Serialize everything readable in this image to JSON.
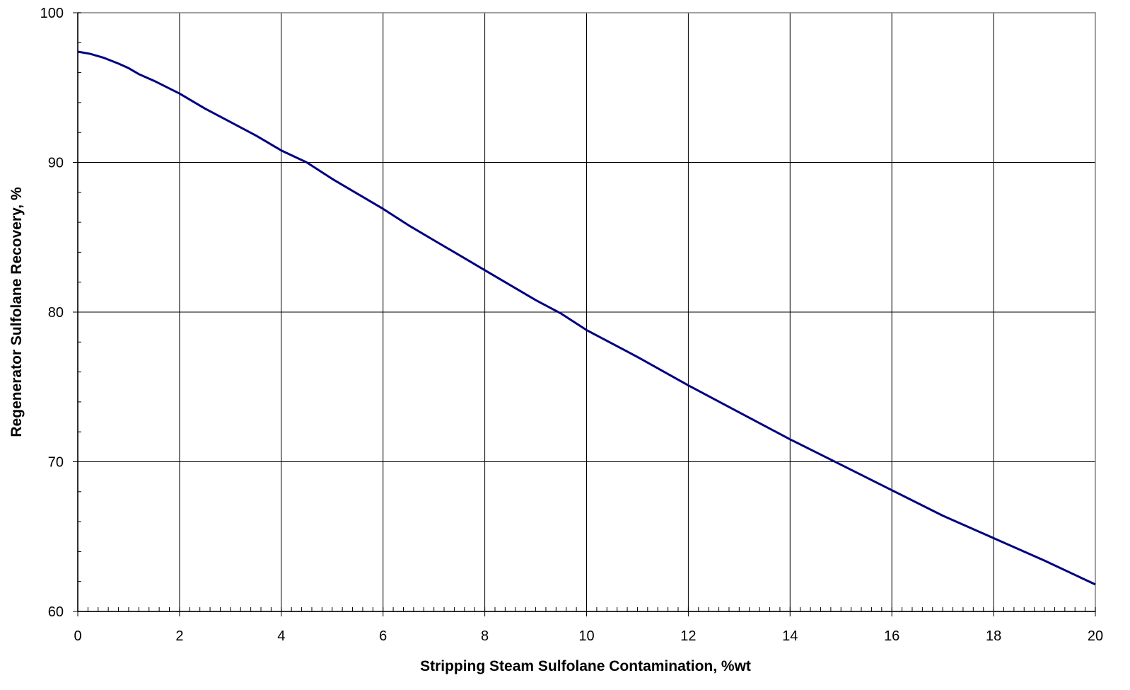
{
  "chart_data": {
    "type": "line",
    "title": "",
    "xlabel": "Stripping Steam Sulfolane Contamination, %wt",
    "ylabel": "Regenerator Sulfolane Recovery, %",
    "xlim": [
      0,
      20
    ],
    "ylim": [
      60,
      100
    ],
    "x_ticks": [
      0,
      2,
      4,
      6,
      8,
      10,
      12,
      14,
      16,
      18,
      20
    ],
    "y_ticks": [
      60,
      70,
      80,
      90,
      100
    ],
    "x_minor_step": 0.2,
    "y_minor_step": 2,
    "grid": true,
    "legend": "none",
    "line_color": "#000080",
    "grid_color": "#000000",
    "frame_color": "#808080",
    "series": [
      {
        "x": [
          0,
          0.25,
          0.5,
          0.8,
          1.0,
          1.2,
          1.5,
          2.0,
          2.5,
          3.0,
          3.5,
          4.0,
          4.5,
          5.0,
          5.5,
          6.0,
          6.5,
          7.0,
          7.5,
          8.0,
          8.5,
          9.0,
          9.5,
          10.0,
          11.0,
          12.0,
          13.0,
          14.0,
          15.0,
          16.0,
          17.0,
          18.0,
          19.0,
          20.0
        ],
        "y": [
          97.4,
          97.25,
          97.0,
          96.6,
          96.3,
          95.9,
          95.45,
          94.6,
          93.6,
          92.7,
          91.8,
          90.8,
          90.0,
          88.9,
          87.9,
          86.9,
          85.8,
          84.8,
          83.8,
          82.8,
          81.8,
          80.8,
          79.9,
          78.8,
          77.0,
          75.1,
          73.3,
          71.5,
          69.8,
          68.1,
          66.4,
          64.9,
          63.4,
          61.8
        ]
      }
    ]
  }
}
